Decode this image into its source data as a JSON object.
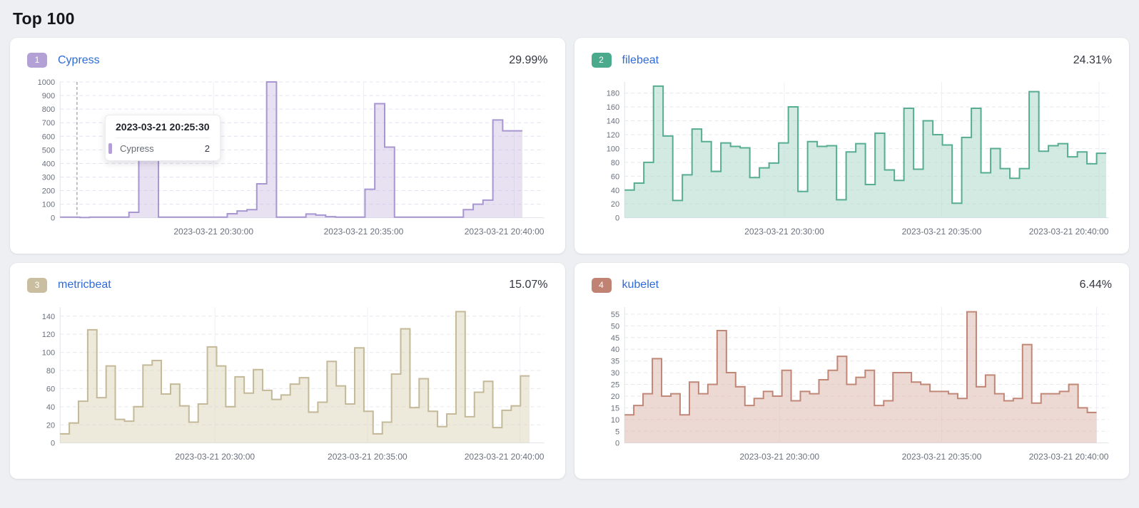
{
  "page_title": "Top 100",
  "tooltip": {
    "timestamp": "2023-03-21 20:25:30",
    "series_label": "Cypress",
    "value": "2",
    "marker_color": "#b3a1d6"
  },
  "chart_data": [
    {
      "type": "area",
      "rank": "1",
      "name": "Cypress",
      "percent": "29.99%",
      "colors": {
        "badge": "#b3a1d6",
        "line": "#a896d1",
        "fill": "#c9bce2",
        "fill_opacity": 0.45,
        "grid": "#e4e1f0"
      },
      "ylabel_max": 1000,
      "y_tick_step": 100,
      "y_scale_max": 1000,
      "ylim": [
        0,
        1000
      ],
      "x_labels": [
        {
          "text": "2023-03-21 20:30:00",
          "pos": 0.317
        },
        {
          "text": "2023-03-21 20:35:00",
          "pos": 0.627
        },
        {
          "text": "2023-03-21 20:40:00",
          "pos": 0.938
        }
      ],
      "crosshair_pos": 0.035,
      "span": 0.955,
      "values": [
        5,
        5,
        2,
        5,
        5,
        5,
        5,
        40,
        500,
        500,
        5,
        5,
        5,
        5,
        5,
        5,
        5,
        30,
        50,
        60,
        250,
        1000,
        5,
        5,
        5,
        28,
        20,
        8,
        5,
        5,
        5,
        210,
        840,
        520,
        5,
        5,
        5,
        5,
        5,
        5,
        5,
        60,
        100,
        130,
        720,
        640,
        640
      ]
    },
    {
      "type": "area",
      "rank": "2",
      "name": "filebeat",
      "percent": "24.31%",
      "colors": {
        "badge": "#4ba98c",
        "line": "#56ad92",
        "fill": "#a8d6c5",
        "fill_opacity": 0.5,
        "grid": "#e4e7ee"
      },
      "ylabel_max": 180,
      "y_tick_step": 20,
      "y_scale_max": 196,
      "ylim": [
        0,
        180
      ],
      "x_labels": [
        {
          "text": "2023-03-21 20:30:00",
          "pos": 0.33
        },
        {
          "text": "2023-03-21 20:35:00",
          "pos": 0.655
        },
        {
          "text": "2023-03-21 20:40:00",
          "pos": 0.98
        }
      ],
      "span": 0.995,
      "values": [
        40,
        50,
        80,
        190,
        118,
        25,
        62,
        128,
        110,
        67,
        108,
        103,
        101,
        58,
        72,
        79,
        108,
        160,
        38,
        110,
        103,
        104,
        26,
        95,
        107,
        48,
        122,
        69,
        54,
        158,
        70,
        140,
        120,
        105,
        21,
        116,
        158,
        65,
        100,
        71,
        57,
        71,
        182,
        96,
        104,
        107,
        88,
        95,
        78,
        93
      ]
    },
    {
      "type": "area",
      "rank": "3",
      "name": "metricbeat",
      "percent": "15.07%",
      "colors": {
        "badge": "#c9bfa0",
        "line": "#c4b998",
        "fill": "#dcd4b8",
        "fill_opacity": 0.5,
        "grid": "#e6e7ee"
      },
      "ylabel_max": 140,
      "y_tick_step": 20,
      "y_scale_max": 150,
      "ylim": [
        0,
        140
      ],
      "x_labels": [
        {
          "text": "2023-03-21 20:30:00",
          "pos": 0.32
        },
        {
          "text": "2023-03-21 20:35:00",
          "pos": 0.635
        },
        {
          "text": "2023-03-21 20:40:00",
          "pos": 0.95
        }
      ],
      "span": 0.97,
      "values": [
        10,
        22,
        46,
        125,
        50,
        85,
        26,
        24,
        40,
        86,
        91,
        54,
        65,
        41,
        23,
        43,
        106,
        85,
        40,
        73,
        55,
        81,
        58,
        48,
        53,
        65,
        72,
        34,
        45,
        90,
        63,
        43,
        105,
        35,
        10,
        23,
        76,
        126,
        39,
        71,
        35,
        18,
        32,
        145,
        29,
        56,
        68,
        17,
        36,
        41,
        74
      ]
    },
    {
      "type": "area",
      "rank": "4",
      "name": "kubelet",
      "percent": "6.44%",
      "colors": {
        "badge": "#c08272",
        "line": "#c08777",
        "fill": "#dcb3a8",
        "fill_opacity": 0.5,
        "grid": "#e9e6ea"
      },
      "ylabel_max": 55,
      "y_tick_step": 5,
      "y_scale_max": 58,
      "ylim": [
        0,
        55
      ],
      "x_labels": [
        {
          "text": "2023-03-21 20:30:00",
          "pos": 0.32
        },
        {
          "text": "2023-03-21 20:35:00",
          "pos": 0.655
        },
        {
          "text": "2023-03-21 20:40:00",
          "pos": 0.975
        }
      ],
      "span": 0.975,
      "values": [
        12,
        16,
        21,
        36,
        20,
        21,
        12,
        26,
        21,
        25,
        48,
        30,
        24,
        16,
        19,
        22,
        20,
        31,
        18,
        22,
        21,
        27,
        31,
        37,
        25,
        28,
        31,
        16,
        18,
        30,
        30,
        26,
        25,
        22,
        22,
        21,
        19,
        56,
        24,
        29,
        21,
        18,
        19,
        42,
        17,
        21,
        21,
        22,
        25,
        15,
        13
      ]
    }
  ]
}
